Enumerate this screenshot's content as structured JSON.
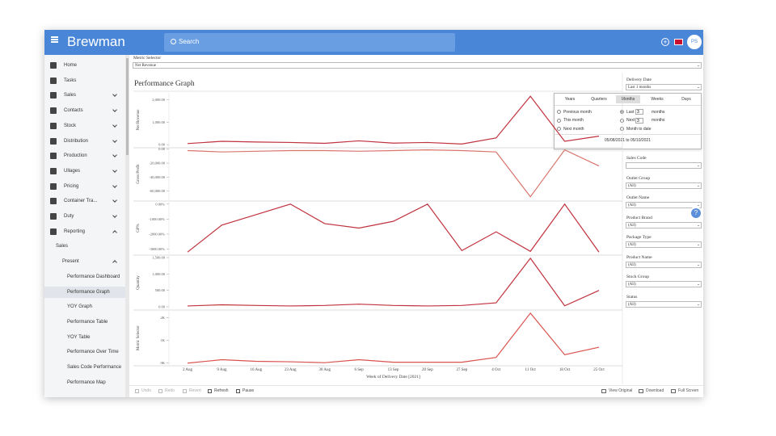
{
  "header": {
    "brand": "Brewman",
    "search": "Search",
    "user": "PS"
  },
  "sidebar": {
    "items": [
      "Home",
      "Tasks",
      "Sales",
      "Contacts",
      "Stock",
      "Distribution",
      "Production",
      "Ullages",
      "Pricing",
      "Container Tra...",
      "Duty",
      "Reporting",
      "Sales",
      "Present",
      "Performance Dashboard",
      "Performance Graph",
      "YOY Graph",
      "Performance Table",
      "YOY Table",
      "Performance Over Time",
      "Sales Code Performance",
      "Performance Map"
    ]
  },
  "metric_selector": {
    "label": "Metric Selector",
    "value": "Net Revenue"
  },
  "page_title": "Performance Graph",
  "chart_data": [
    {
      "type": "line",
      "y_label": "Net Revenue",
      "color": "#c0323d",
      "values": [
        50,
        150,
        120,
        100,
        60,
        170,
        70,
        100,
        30,
        300,
        2150,
        150,
        380
      ],
      "ylim": [
        -100,
        2300
      ],
      "yticks": [
        {
          "value": 0,
          "label": "0.00"
        },
        {
          "value": 1000,
          "label": "1,000.00"
        },
        {
          "value": 2000,
          "label": "2,000.00"
        }
      ]
    },
    {
      "type": "line",
      "y_label": "Gross Profit",
      "color": "#d9756d",
      "values": [
        -2000,
        -4000,
        -3000,
        -2000,
        -2000,
        -3000,
        -2000,
        -1000,
        -2000,
        -4000,
        -68000,
        -1000,
        -24000
      ],
      "ylim": [
        -73000,
        2000
      ],
      "yticks": [
        {
          "value": 0,
          "label": "0.00"
        },
        {
          "value": -20000,
          "label": "-20,000.00"
        },
        {
          "value": -40000,
          "label": "-40,000.00"
        },
        {
          "value": -60000,
          "label": "-60,000.00"
        }
      ]
    },
    {
      "type": "line",
      "y_label": "GP%",
      "color": "#c0323d",
      "values": [
        -3200,
        -1400,
        -700,
        0,
        -1300,
        -1600,
        -1150,
        0,
        -3100,
        -1850,
        -3150,
        0,
        -3200
      ],
      "ylim": [
        -3350,
        150
      ],
      "yticks": [
        {
          "value": 0,
          "label": "0.00%"
        },
        {
          "value": -1000,
          "label": "-1000.00%"
        },
        {
          "value": -2000,
          "label": "-2000.00%"
        },
        {
          "value": -3000,
          "label": "-3000.00%"
        }
      ]
    },
    {
      "type": "line",
      "y_label": "Quantity",
      "color": "#c0323d",
      "values": [
        25,
        60,
        40,
        25,
        40,
        80,
        40,
        25,
        40,
        120,
        1480,
        30,
        500
      ],
      "ylim": [
        -75,
        1550
      ],
      "yticks": [
        {
          "value": 0,
          "label": "0.00"
        },
        {
          "value": 500,
          "label": "500.00"
        },
        {
          "value": 1000,
          "label": "1,000.00"
        },
        {
          "value": 1500,
          "label": "1,500.00"
        }
      ]
    },
    {
      "type": "line",
      "y_label": "Metric Selector",
      "color": "#d9534f",
      "categories": [
        "2 Aug",
        "9 Aug",
        "16 Aug",
        "23 Aug",
        "30 Aug",
        "6 Sep",
        "13 Sep",
        "20 Sep",
        "27 Sep",
        "4 Oct",
        "11 Oct",
        "18 Oct",
        "25 Oct"
      ],
      "x_label": "Week of Delivery Date [2021]",
      "values": [
        0,
        150,
        80,
        60,
        20,
        150,
        40,
        40,
        40,
        250,
        2200,
        370,
        700
      ],
      "ylim": [
        -80,
        2300
      ],
      "yticks": [
        {
          "value": 0,
          "label": "0K"
        },
        {
          "value": 1000,
          "label": "1K"
        },
        {
          "value": 2000,
          "label": "2K"
        }
      ]
    }
  ],
  "filters": {
    "delivery_date": {
      "label": "Delivery Date",
      "value": "Last 1 months"
    },
    "period_picker": {
      "tabs": [
        "Years",
        "Quarters",
        "Months",
        "Weeks",
        "Days"
      ],
      "relative": [
        "Previous month",
        "This month",
        "Next month"
      ],
      "last": {
        "label": "Last",
        "count": 3,
        "unit": "months"
      },
      "next": {
        "label": "Next",
        "count": 3,
        "unit": "months"
      },
      "to_date": "Month to date",
      "range": "05/08/2021 to 05/10/2021"
    },
    "fields": [
      {
        "label": "Sales Code"
      },
      {
        "label": "Outlet Group",
        "value": "(All)"
      },
      {
        "label": "Outlet Name",
        "value": "(All)"
      },
      {
        "label": "Product Brand",
        "value": "(All)"
      },
      {
        "label": "Package Type",
        "value": "(All)"
      },
      {
        "label": "Product Name",
        "value": "(All)"
      },
      {
        "label": "Stock Group",
        "value": "(All)"
      },
      {
        "label": "Status",
        "value": "(All)"
      }
    ]
  },
  "toolbar": {
    "left": [
      "Undo",
      "Redo",
      "Revert",
      "Refresh",
      "Pause"
    ],
    "right": [
      "View Original",
      "Download",
      "Full Screen"
    ]
  }
}
